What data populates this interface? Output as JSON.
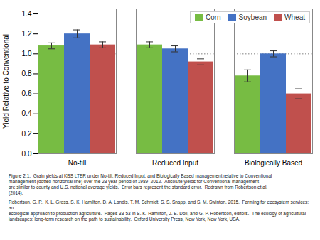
{
  "chart_data": {
    "type": "bar",
    "categories": [
      "No-till",
      "Reduced Input",
      "Biologically Based"
    ],
    "series": [
      {
        "name": "Corn",
        "color": "#77bc43",
        "values": [
          1.08,
          1.09,
          0.78
        ],
        "errors": [
          0.03,
          0.03,
          0.06
        ]
      },
      {
        "name": "Soybean",
        "color": "#4472c4",
        "values": [
          1.2,
          1.05,
          1.0
        ],
        "errors": [
          0.04,
          0.03,
          0.03
        ]
      },
      {
        "name": "Wheat",
        "color": "#c0504d",
        "values": [
          1.09,
          0.92,
          0.6
        ],
        "errors": [
          0.03,
          0.03,
          0.05
        ]
      }
    ],
    "ylabel": "Yield Relative to Conventional",
    "ylim": [
      0.0,
      1.45
    ],
    "yticks": [
      {
        "value": 0.0,
        "label": "0.0"
      },
      {
        "value": 0.2,
        "label": "0.2"
      },
      {
        "value": 0.4,
        "label": "0.4"
      },
      {
        "value": 0.6,
        "label": "0.6"
      },
      {
        "value": 0.8,
        "label": "0.8"
      },
      {
        "value": 1.0,
        "label": "1.0"
      },
      {
        "value": 1.2,
        "label": "1.2"
      },
      {
        "value": 1.4,
        "label": "1.4"
      }
    ],
    "reference_line": {
      "value": 1.0,
      "color": "#aaaaaa",
      "line_style": "dotted"
    },
    "grid": false,
    "legend": "upper right",
    "caption": "Figure 2.1.  Grain yields at KBS LTER under No-till, Reduced Input, and Biologically Based management relative to Conventional\nmanagement (dotted horizontal line) over the 23 year period of 1989–2012.  Absolute yields for Conventional management\nare similar to county and U.S. national average yields.  Error bars represent the standard error.  Redrawn from Robertson et al.\n(2014).",
    "note": "Robertson, G. P., K. L. Gross, S. K. Hamilton, D. A. Landis, T. M. Schmidt, S. S. Snapp, and S. M. Swinton. 2015.  Farming for ecosystem services: an\necological approach to production agriculture.  Pages 33-53 in S. K. Hamilton, J. E. Doll, and G. P. Robertson, editors.  The ecology of agricultural\nlandscapes: long-term research on the path to sustainability.  Oxford University Press, New York, New York, USA."
  }
}
